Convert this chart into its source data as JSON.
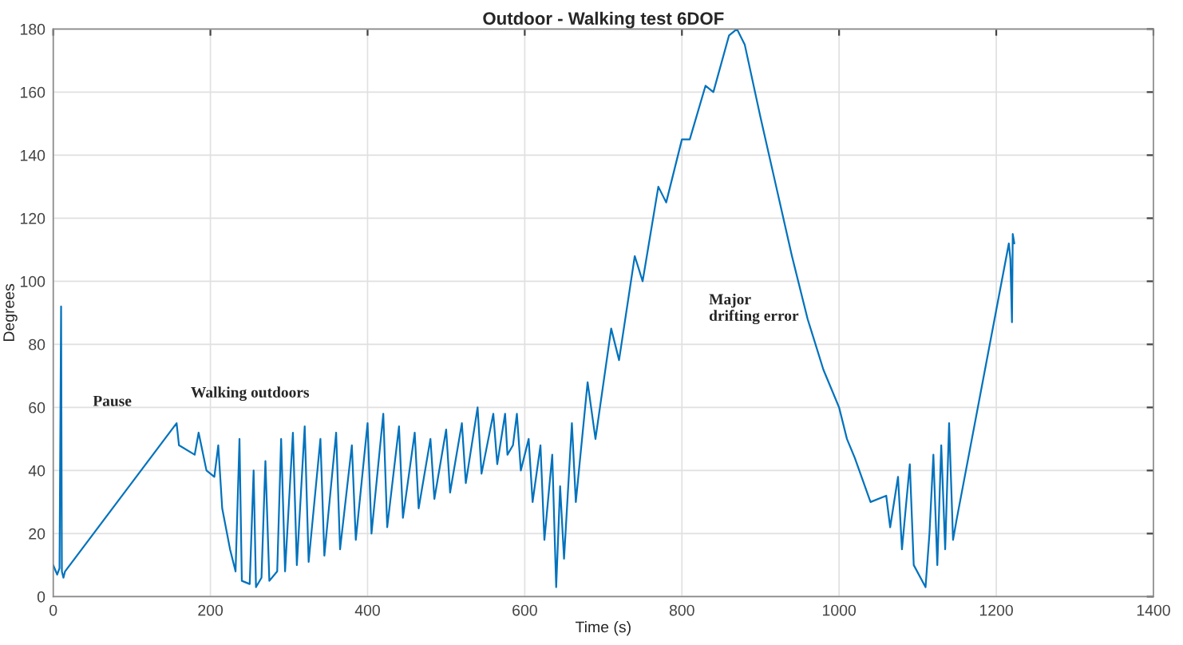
{
  "chart_data": {
    "type": "line",
    "title": "Outdoor - Walking test 6DOF",
    "xlabel": "Time (s)",
    "ylabel": "Degrees",
    "xlim": [
      0,
      1400
    ],
    "xticks": [
      0,
      200,
      400,
      600,
      800,
      1000,
      1200,
      1400
    ],
    "ylim": [
      0,
      180
    ],
    "yticks": [
      0,
      20,
      40,
      60,
      80,
      100,
      120,
      140,
      160,
      180
    ],
    "grid": true,
    "legend": false,
    "annotations": [
      "Pause",
      "Walking outdoors",
      "Major\ndrifting error"
    ],
    "series": [
      {
        "color": "#0072bd",
        "x": [
          0,
          5,
          8,
          10,
          11,
          13,
          15,
          157,
          160,
          180,
          185,
          195,
          205,
          210,
          215,
          225,
          232,
          237,
          240,
          250,
          255,
          258,
          265,
          270,
          275,
          285,
          290,
          295,
          305,
          310,
          320,
          325,
          340,
          345,
          360,
          365,
          380,
          385,
          400,
          405,
          420,
          425,
          440,
          445,
          460,
          465,
          480,
          485,
          500,
          505,
          520,
          525,
          540,
          545,
          560,
          565,
          575,
          578,
          585,
          590,
          595,
          605,
          610,
          620,
          625,
          635,
          640,
          645,
          650,
          660,
          665,
          680,
          690,
          710,
          720,
          740,
          750,
          770,
          780,
          800,
          810,
          830,
          840,
          860,
          870,
          880,
          900,
          920,
          940,
          960,
          980,
          1000,
          1010,
          1020,
          1040,
          1060,
          1065,
          1075,
          1080,
          1090,
          1095,
          1110,
          1115,
          1120,
          1125,
          1130,
          1135,
          1140,
          1145,
          1150,
          1213,
          1216,
          1218,
          1220,
          1221,
          1223
        ],
        "values": [
          10,
          7,
          9,
          92,
          8,
          6,
          8,
          55,
          48,
          45,
          52,
          40,
          38,
          48,
          28,
          15,
          8,
          50,
          5,
          4,
          40,
          3,
          6,
          43,
          5,
          8,
          50,
          8,
          52,
          10,
          54,
          11,
          50,
          13,
          52,
          15,
          48,
          18,
          55,
          20,
          58,
          22,
          54,
          25,
          52,
          28,
          50,
          31,
          53,
          33,
          55,
          36,
          60,
          39,
          58,
          42,
          58,
          45,
          48,
          58,
          40,
          50,
          30,
          48,
          18,
          45,
          3,
          35,
          12,
          55,
          30,
          68,
          50,
          85,
          75,
          108,
          100,
          130,
          125,
          145,
          145,
          162,
          160,
          178,
          180,
          175,
          152,
          130,
          108,
          88,
          72,
          60,
          50,
          44,
          30,
          32,
          22,
          38,
          15,
          42,
          10,
          3,
          20,
          45,
          10,
          48,
          15,
          55,
          18,
          25,
          108,
          112,
          107,
          87,
          115,
          112
        ]
      }
    ]
  }
}
